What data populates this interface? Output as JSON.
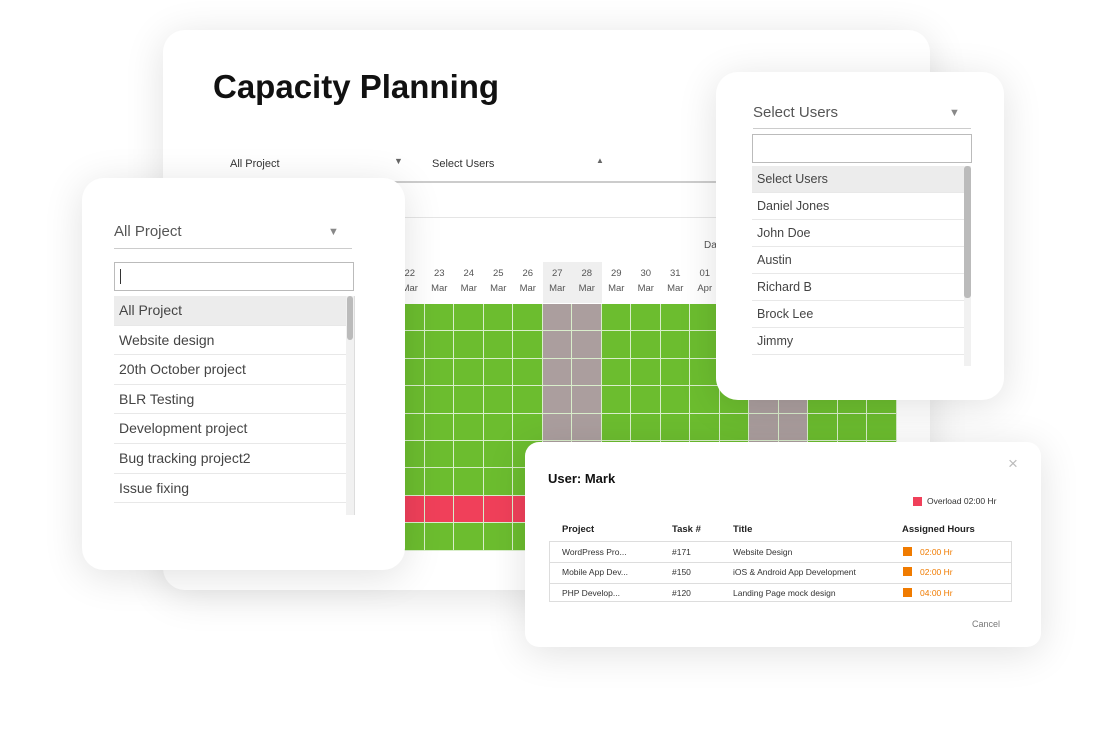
{
  "title": "Capacity Planning",
  "filters": {
    "project": "All Project",
    "users": "Select Users"
  },
  "calendar": {
    "header": "Da",
    "days": [
      {
        "day": "22",
        "month": "Mar"
      },
      {
        "day": "23",
        "month": "Mar"
      },
      {
        "day": "24",
        "month": "Mar"
      },
      {
        "day": "25",
        "month": "Mar"
      },
      {
        "day": "26",
        "month": "Mar"
      },
      {
        "day": "27",
        "month": "Mar"
      },
      {
        "day": "28",
        "month": "Mar"
      },
      {
        "day": "29",
        "month": "Mar"
      },
      {
        "day": "30",
        "month": "Mar"
      },
      {
        "day": "31",
        "month": "Mar"
      },
      {
        "day": "01",
        "month": "Apr"
      }
    ]
  },
  "project_dropdown": {
    "label": "All Project",
    "options": [
      "All Project",
      "Website design",
      "20th October project",
      "BLR Testing",
      "Development project",
      "Bug tracking project2",
      "Issue fixing"
    ]
  },
  "users_dropdown": {
    "label": "Select Users",
    "options": [
      "Select Users",
      "Daniel Jones",
      "John Doe",
      "Austin",
      "Richard B",
      "Brock Lee",
      "Jimmy"
    ]
  },
  "modal": {
    "title": "User: Mark",
    "legend": "Overload 02:00 Hr",
    "columns": [
      "Project",
      "Task #",
      "Title",
      "Assigned Hours"
    ],
    "rows": [
      [
        "WordPress Pro...",
        "#171",
        "Website Design",
        "02:00 Hr"
      ],
      [
        "Mobile App Dev...",
        "#150",
        "iOS & Android App Development",
        "02:00 Hr"
      ],
      [
        "PHP Develop...",
        "#120",
        "Landing Page mock design",
        "04:00 Hr"
      ]
    ],
    "cancel": "Cancel",
    "close": "×"
  }
}
